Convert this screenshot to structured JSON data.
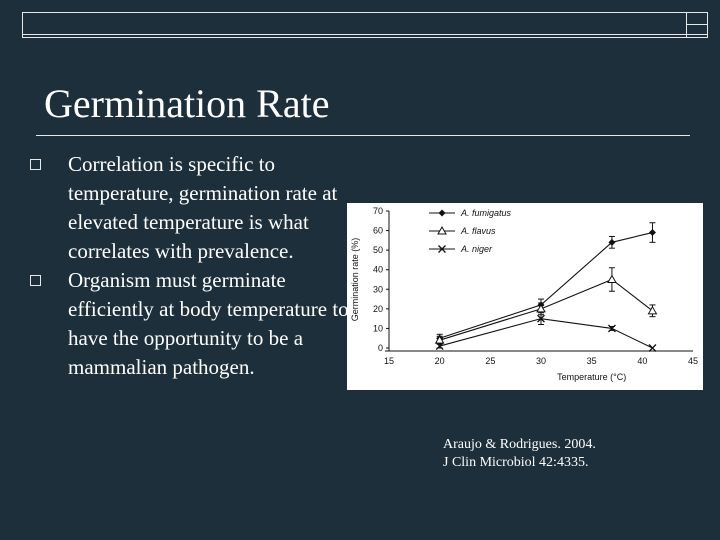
{
  "slide": {
    "title": "Germination Rate",
    "bullets": [
      "Correlation is specific to temperature, germination rate at elevated temperature is what correlates with prevalence.",
      "Organism must germinate efficiently at body temperature to have the opportunity to be a mammalian pathogen."
    ],
    "citation_line1": "Araujo & Rodrigues. 2004.",
    "citation_line2": "J Clin Microbiol 42:4335.",
    "colors": {
      "background": "#1d2f3a",
      "text": "#ffffff",
      "chart_bg": "#ffffff",
      "chart_ink": "#111111"
    }
  },
  "chart_data": {
    "type": "line",
    "xlabel": "Temperature (°C)",
    "ylabel": "Germination rate (%)",
    "xlim": [
      15,
      45
    ],
    "ylim": [
      0,
      70
    ],
    "xticks": [
      15,
      20,
      25,
      30,
      35,
      40,
      45
    ],
    "yticks": [
      0,
      10,
      20,
      30,
      40,
      50,
      60,
      70
    ],
    "x": [
      20,
      30,
      37,
      41
    ],
    "series": [
      {
        "name": "A. fumigatus",
        "marker": "diamond",
        "values": [
          5,
          22,
          54,
          59
        ],
        "errors": [
          2,
          3,
          3,
          5
        ]
      },
      {
        "name": "A. flavus",
        "marker": "triangle",
        "values": [
          4,
          20,
          35,
          19
        ],
        "errors": [
          2,
          3,
          6,
          3
        ]
      },
      {
        "name": "A. niger",
        "marker": "x",
        "values": [
          1,
          15,
          10,
          0
        ],
        "errors": [
          1,
          3,
          1,
          0
        ]
      }
    ],
    "legend_position": "top-left",
    "grid": false
  }
}
